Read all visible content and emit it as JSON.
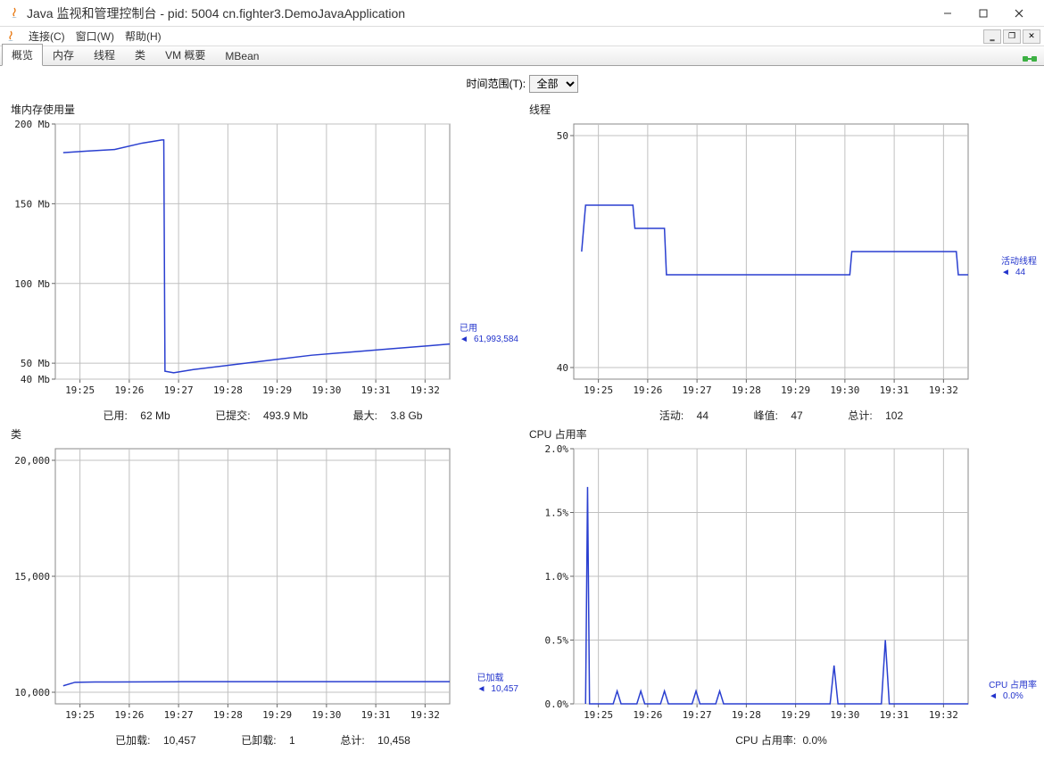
{
  "window": {
    "title": "Java 监视和管理控制台 - pid: 5004 cn.fighter3.DemoJavaApplication"
  },
  "menu": {
    "connect": "连接(C)",
    "window": "窗口(W)",
    "help": "帮助(H)"
  },
  "tabs": {
    "overview": "概览",
    "memory": "内存",
    "threads": "线程",
    "classes": "类",
    "vm_summary": "VM 概要",
    "mbean": "MBean"
  },
  "timerange": {
    "label": "时间范围(T):",
    "value": "全部"
  },
  "x_ticks": [
    "19:25",
    "19:26",
    "19:27",
    "19:28",
    "19:29",
    "19:30",
    "19:31",
    "19:32"
  ],
  "colors": {
    "series": "#2a3fd0",
    "grid": "#c0c0c0",
    "outerbar_top": "#a8a8a8",
    "bg": "#ffffff"
  },
  "heap": {
    "title": "堆内存使用量",
    "y_ticks": [
      40,
      50,
      100,
      150,
      200
    ],
    "y_unit": "Mb",
    "legend_label": "已用",
    "legend_value": "61,993,584",
    "footer_used_label": "已用:",
    "footer_used_value": "62  Mb",
    "footer_committed_label": "已提交:",
    "footer_committed_value": "493.9  Mb",
    "footer_max_label": "最大:",
    "footer_max_value": "3.8  Gb",
    "points": [
      {
        "x": 0.02,
        "y": 182
      },
      {
        "x": 0.08,
        "y": 183
      },
      {
        "x": 0.15,
        "y": 184
      },
      {
        "x": 0.22,
        "y": 188
      },
      {
        "x": 0.27,
        "y": 190
      },
      {
        "x": 0.275,
        "y": 190
      },
      {
        "x": 0.278,
        "y": 45
      },
      {
        "x": 0.3,
        "y": 44
      },
      {
        "x": 0.35,
        "y": 46
      },
      {
        "x": 0.45,
        "y": 49
      },
      {
        "x": 0.55,
        "y": 52
      },
      {
        "x": 0.65,
        "y": 55
      },
      {
        "x": 0.75,
        "y": 57
      },
      {
        "x": 0.85,
        "y": 59
      },
      {
        "x": 0.95,
        "y": 61
      },
      {
        "x": 1.0,
        "y": 62
      }
    ],
    "ylim": [
      40,
      200
    ]
  },
  "threads": {
    "title": "线程",
    "y_ticks": [
      40,
      50
    ],
    "legend_label": "活动线程",
    "legend_value": "44",
    "footer_active_label": "活动:",
    "footer_active_value": "44",
    "footer_peak_label": "峰值:",
    "footer_peak_value": "47",
    "footer_total_label": "总计:",
    "footer_total_value": "102",
    "points": [
      {
        "x": 0.02,
        "y": 45
      },
      {
        "x": 0.03,
        "y": 47
      },
      {
        "x": 0.15,
        "y": 47
      },
      {
        "x": 0.155,
        "y": 46
      },
      {
        "x": 0.23,
        "y": 46
      },
      {
        "x": 0.235,
        "y": 44
      },
      {
        "x": 0.7,
        "y": 44
      },
      {
        "x": 0.705,
        "y": 45
      },
      {
        "x": 0.97,
        "y": 45
      },
      {
        "x": 0.975,
        "y": 44
      },
      {
        "x": 1.0,
        "y": 44
      }
    ],
    "ylim": [
      39.5,
      50.5
    ]
  },
  "classes": {
    "title": "类",
    "y_ticks": [
      10000,
      15000,
      20000
    ],
    "legend_label": "已加载",
    "legend_value": "10,457",
    "footer_loaded_label": "已加载:",
    "footer_loaded_value": "10,457",
    "footer_unloaded_label": "已卸载:",
    "footer_unloaded_value": "1",
    "footer_total_label": "总计:",
    "footer_total_value": "10,458",
    "points": [
      {
        "x": 0.02,
        "y": 10280
      },
      {
        "x": 0.05,
        "y": 10430
      },
      {
        "x": 0.1,
        "y": 10440
      },
      {
        "x": 0.3,
        "y": 10450
      },
      {
        "x": 0.32,
        "y": 10455
      },
      {
        "x": 0.5,
        "y": 10456
      },
      {
        "x": 0.8,
        "y": 10457
      },
      {
        "x": 1.0,
        "y": 10457
      }
    ],
    "ylim": [
      9500,
      20500
    ]
  },
  "cpu": {
    "title": "CPU 占用率",
    "y_ticks": [
      0.0,
      0.5,
      1.0,
      1.5,
      2.0
    ],
    "y_suffix": "%",
    "legend_label": "CPU 占用率",
    "legend_value": "0.0%",
    "footer_label": "CPU 占用率:",
    "footer_value": "0.0%",
    "points": [
      {
        "x": 0.03,
        "y": 0.0
      },
      {
        "x": 0.035,
        "y": 1.7
      },
      {
        "x": 0.04,
        "y": 0.0
      },
      {
        "x": 0.1,
        "y": 0.0
      },
      {
        "x": 0.11,
        "y": 0.1
      },
      {
        "x": 0.12,
        "y": 0.0
      },
      {
        "x": 0.16,
        "y": 0.0
      },
      {
        "x": 0.17,
        "y": 0.1
      },
      {
        "x": 0.18,
        "y": 0.0
      },
      {
        "x": 0.22,
        "y": 0.0
      },
      {
        "x": 0.23,
        "y": 0.1
      },
      {
        "x": 0.24,
        "y": 0.0
      },
      {
        "x": 0.3,
        "y": 0.0
      },
      {
        "x": 0.31,
        "y": 0.1
      },
      {
        "x": 0.32,
        "y": 0.0
      },
      {
        "x": 0.36,
        "y": 0.0
      },
      {
        "x": 0.37,
        "y": 0.1
      },
      {
        "x": 0.38,
        "y": 0.0
      },
      {
        "x": 0.65,
        "y": 0.0
      },
      {
        "x": 0.66,
        "y": 0.3
      },
      {
        "x": 0.67,
        "y": 0.0
      },
      {
        "x": 0.78,
        "y": 0.0
      },
      {
        "x": 0.79,
        "y": 0.5
      },
      {
        "x": 0.8,
        "y": 0.0
      },
      {
        "x": 1.0,
        "y": 0.0
      }
    ],
    "ylim": [
      0,
      2.0
    ]
  }
}
